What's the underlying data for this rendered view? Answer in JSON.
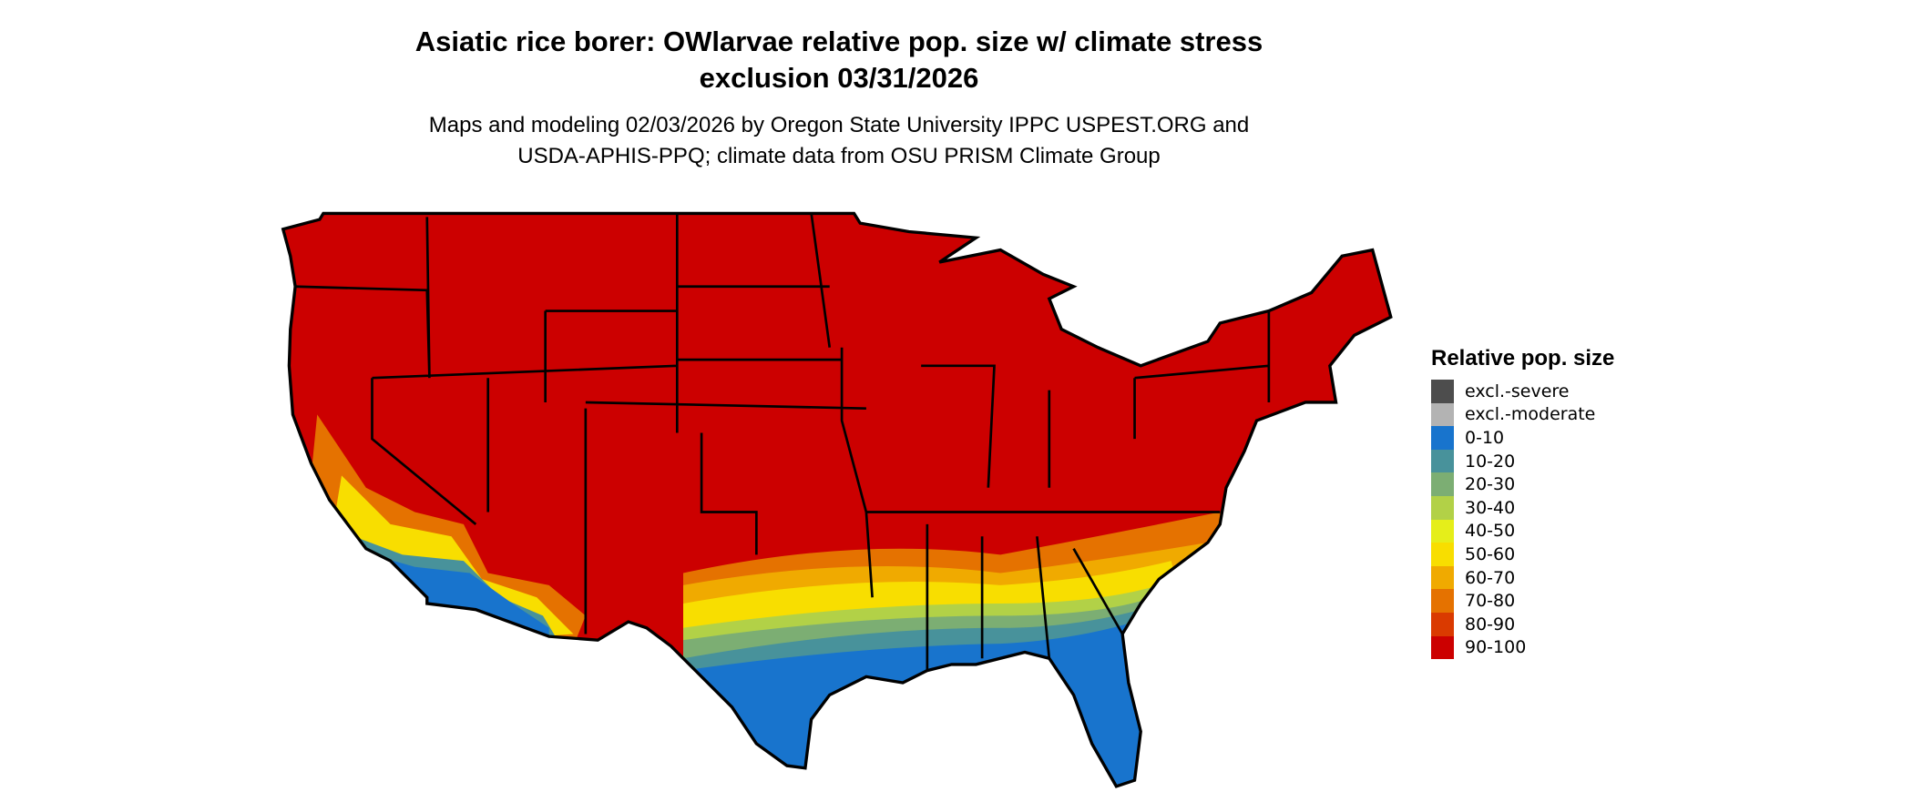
{
  "chart_data": {
    "type": "map",
    "title": [
      "Asiatic rice borer: OWlarvae relative pop. size w/ climate stress",
      "exclusion 03/31/2026"
    ],
    "subtitle": [
      "Maps and modeling 02/03/2026 by Oregon State University IPPC USPEST.ORG and",
      "USDA-APHIS-PPQ; climate data from OSU PRISM Climate Group"
    ],
    "region": "Contiguous United States",
    "legend": {
      "title": "Relative pop. size",
      "placement": "right",
      "entries": [
        {
          "label": "excl.-severe",
          "color": "#4d4d4d"
        },
        {
          "label": "excl.-moderate",
          "color": "#b3b3b3"
        },
        {
          "label": "0-10",
          "color": "#1874cd"
        },
        {
          "label": "10-20",
          "color": "#48929b"
        },
        {
          "label": "20-30",
          "color": "#7cae73"
        },
        {
          "label": "30-40",
          "color": "#b2d147"
        },
        {
          "label": "40-50",
          "color": "#e5ee1a"
        },
        {
          "label": "50-60",
          "color": "#f8de00"
        },
        {
          "label": "60-70",
          "color": "#f0aa00"
        },
        {
          "label": "70-80",
          "color": "#e57200"
        },
        {
          "label": "80-90",
          "color": "#da3a00"
        },
        {
          "label": "90-100",
          "color": "#cc0000"
        }
      ]
    }
  }
}
